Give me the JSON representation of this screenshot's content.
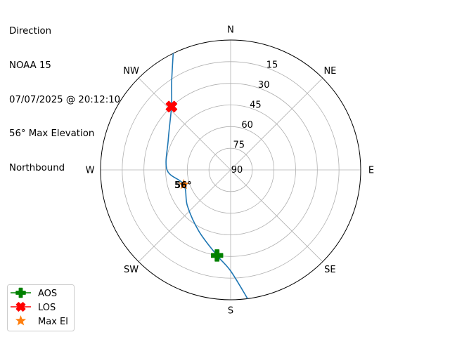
{
  "chart_data": {
    "type": "polar",
    "title_lines": [
      "Direction",
      "NOAA 15",
      "07/07/2025 @ 20:12:10",
      "56° Max Elevation",
      "Northbound"
    ],
    "theta_direction": "clockwise",
    "theta_zero": "N",
    "theta_tick_labels": [
      {
        "az": 0,
        "label": "N"
      },
      {
        "az": 45,
        "label": "NE"
      },
      {
        "az": 90,
        "label": "E"
      },
      {
        "az": 135,
        "label": "SE"
      },
      {
        "az": 180,
        "label": "S"
      },
      {
        "az": 225,
        "label": "SW"
      },
      {
        "az": 270,
        "label": "W"
      },
      {
        "az": 315,
        "label": "NW"
      }
    ],
    "radial_axis": "elevation (90 at center, 0 at edge)",
    "radial_ticks": [
      15,
      30,
      45,
      60,
      75,
      90
    ],
    "grid": true,
    "track": {
      "color": "#1f77b4",
      "points": [
        {
          "az": 172.5,
          "el": 0
        },
        {
          "az": 180,
          "el": 20
        },
        {
          "az": 189,
          "el": 30
        },
        {
          "az": 207,
          "el": 42
        },
        {
          "az": 230,
          "el": 51
        },
        {
          "az": 252.6,
          "el": 56
        },
        {
          "az": 270,
          "el": 46
        },
        {
          "az": 296,
          "el": 42
        },
        {
          "az": 317,
          "el": 30
        },
        {
          "az": 326,
          "el": 17
        },
        {
          "az": 333.8,
          "el": 0
        }
      ]
    },
    "markers": [
      {
        "name": "AOS",
        "az": 189,
        "el": 30,
        "color": "#008000",
        "shape": "plus"
      },
      {
        "name": "LOS",
        "az": 317,
        "el": 30,
        "color": "#ff0000",
        "shape": "x"
      },
      {
        "name": "Max El",
        "az": 252.6,
        "el": 56,
        "color": "#ff7f0e",
        "shape": "star",
        "label": "56°"
      }
    ],
    "legend": {
      "placement": "bottom-left",
      "entries": [
        "AOS",
        "LOS",
        "Max El"
      ]
    }
  }
}
